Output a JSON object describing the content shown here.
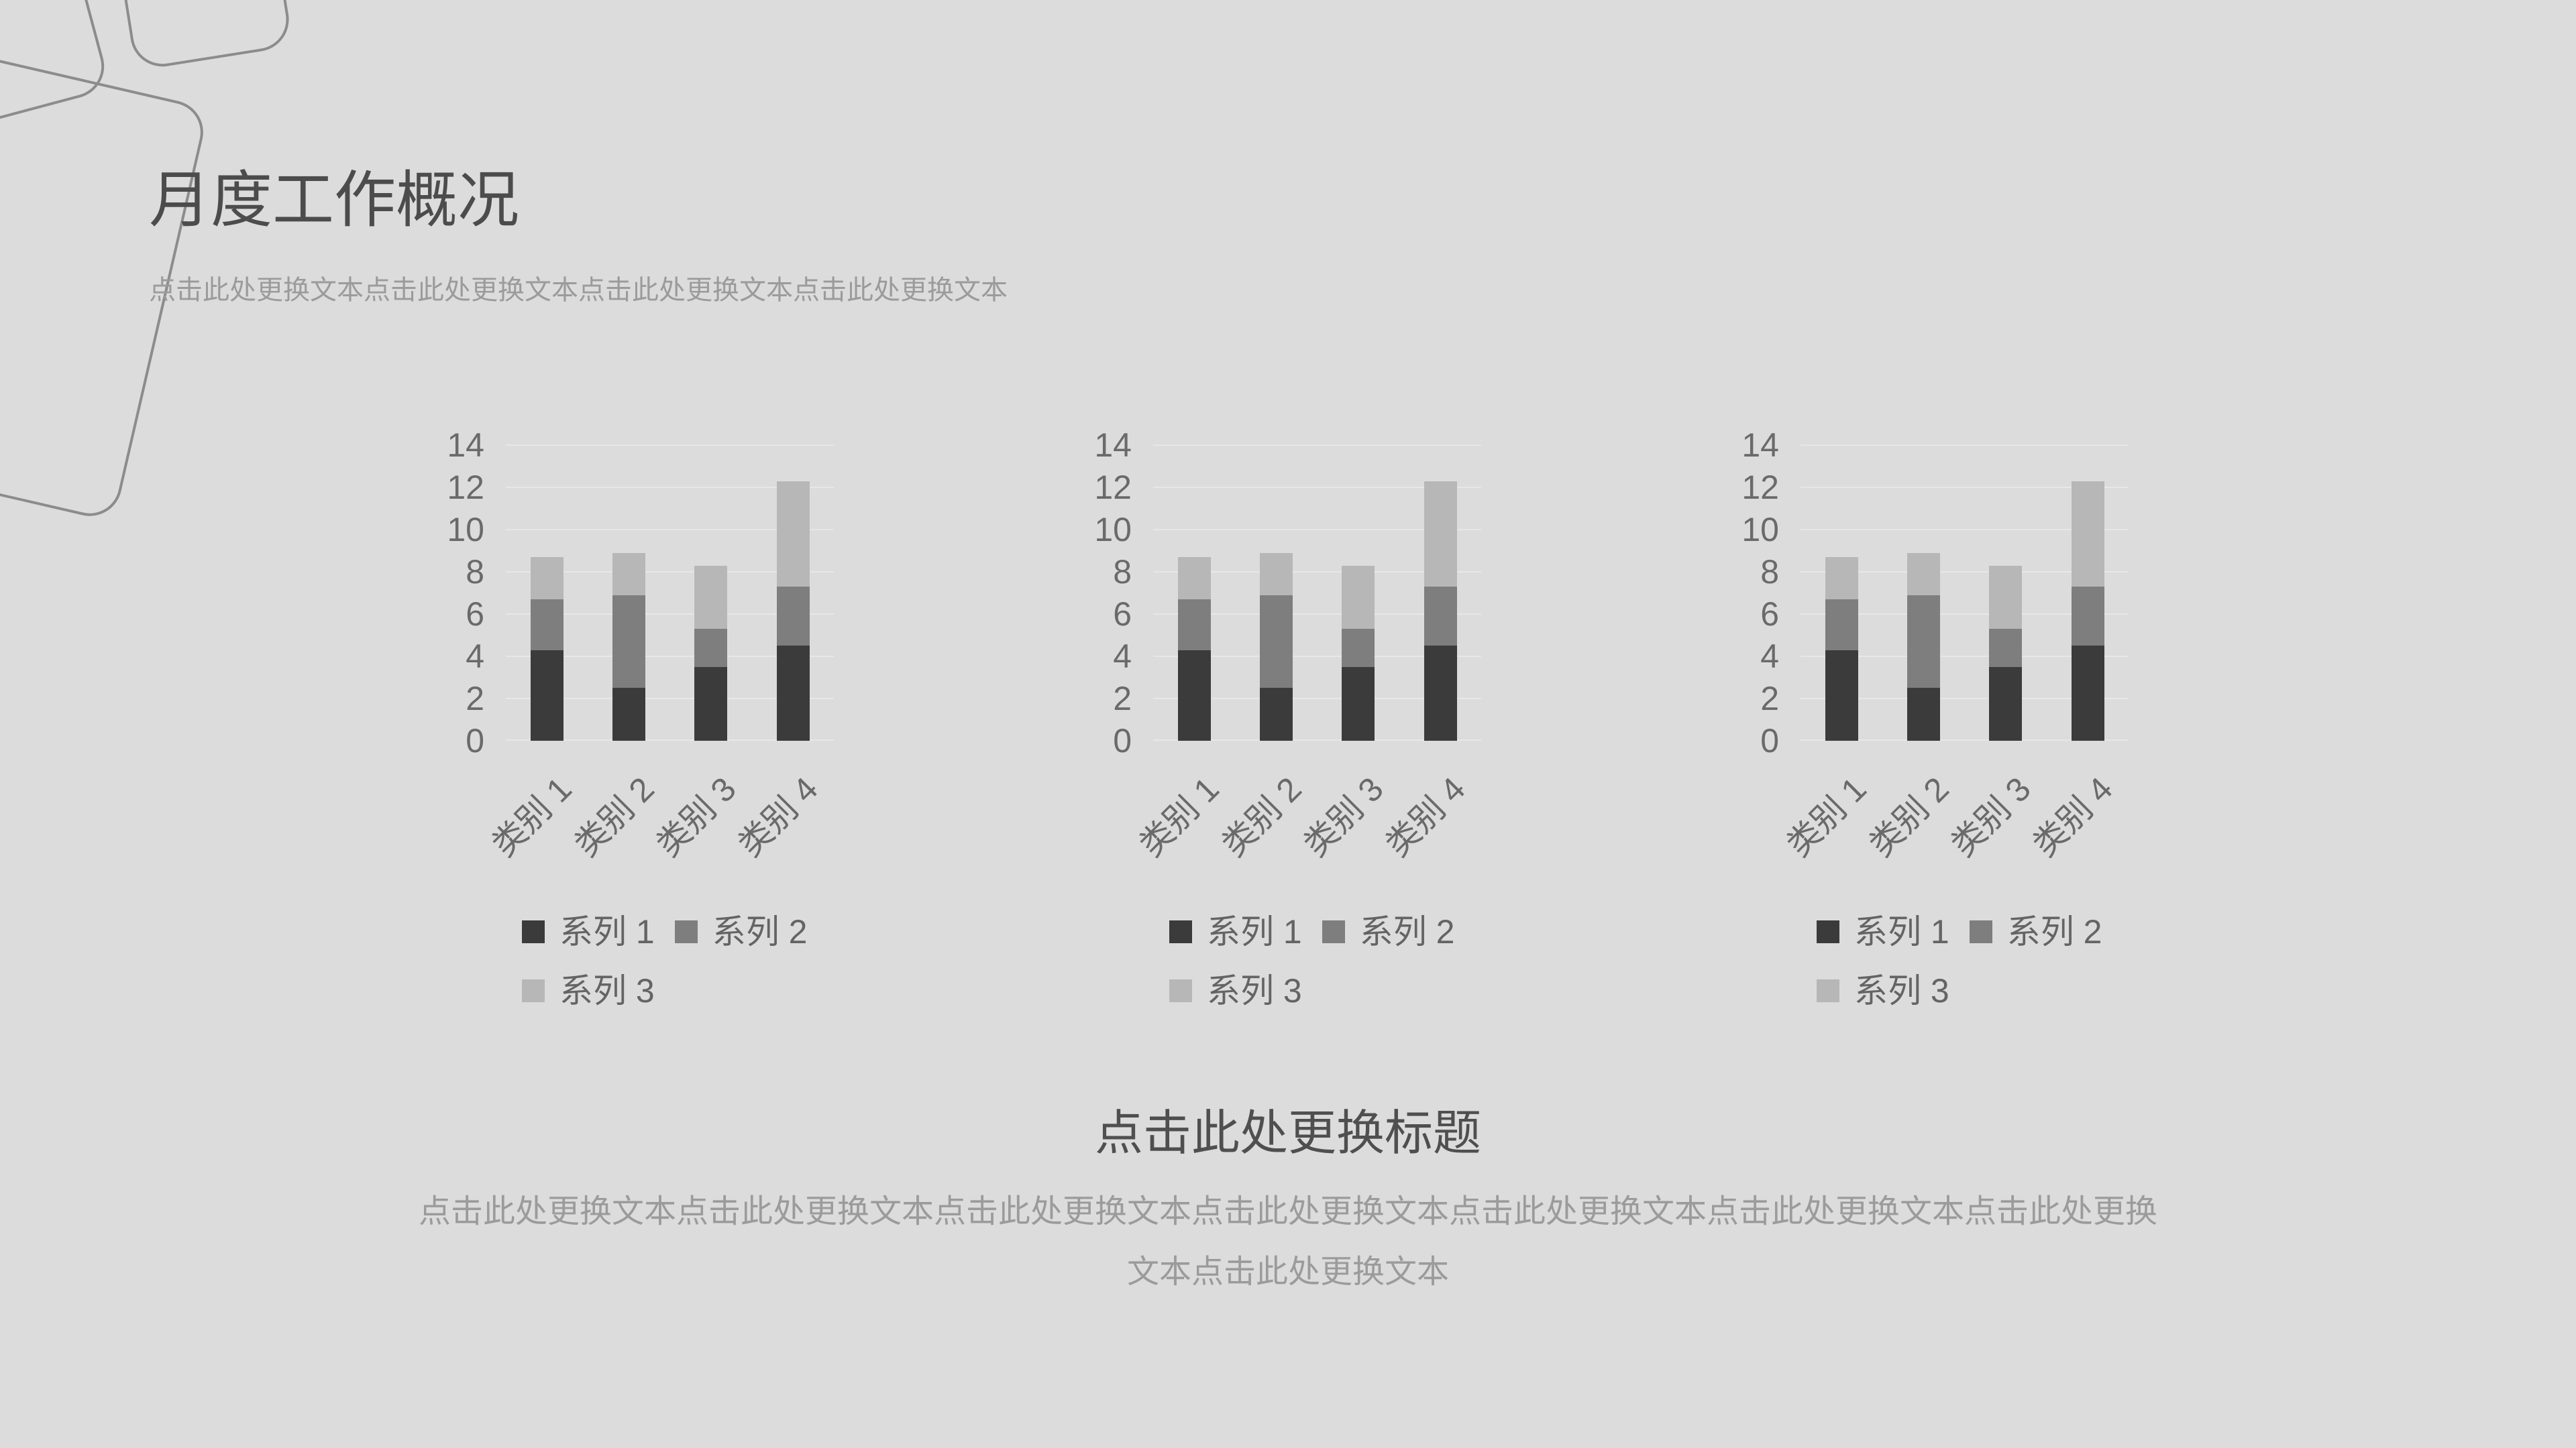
{
  "slide": {
    "background_color": "#dcdcdc",
    "decor_line_color": "#8c8c8c",
    "title": {
      "text": "月度工作概况",
      "color": "#4c4c4c"
    },
    "subtitle": {
      "text": "点击此处更换文本点击此处更换文本点击此处更换文本点击此处更换文本",
      "color": "#9b9b9b"
    },
    "footer_title": {
      "text": "点击此处更换标题",
      "color": "#4f4f4f"
    },
    "footer_text": {
      "text": "点击此处更换文本点击此处更换文本点击此处更换文本点击此处更换文本点击此处更换文本点击此处更换文本点击此处更换文本点击此处更换文本",
      "color": "#9b9b9b"
    }
  },
  "chart_data": [
    {
      "type": "bar",
      "stacked": true,
      "title": "",
      "xlabel": "",
      "ylabel": "",
      "categories": [
        "类别 1",
        "类别 2",
        "类别 3",
        "类别 4"
      ],
      "series": [
        {
          "name": "系列 1",
          "color": "#3b3b3b",
          "values": [
            4.3,
            2.5,
            3.5,
            4.5
          ]
        },
        {
          "name": "系列 2",
          "color": "#7e7e7e",
          "values": [
            2.4,
            4.4,
            1.8,
            2.8
          ]
        },
        {
          "name": "系列 3",
          "color": "#b7b7b7",
          "values": [
            2,
            2,
            3,
            5
          ]
        }
      ],
      "ylim": [
        0,
        14
      ],
      "ytick_step": 2,
      "grid": true,
      "gridline_color": "#e7e7e7",
      "axis_text_color": "#6a6a6a",
      "legend_position": "bottom"
    },
    {
      "type": "bar",
      "stacked": true,
      "title": "",
      "xlabel": "",
      "ylabel": "",
      "categories": [
        "类别 1",
        "类别 2",
        "类别 3",
        "类别 4"
      ],
      "series": [
        {
          "name": "系列 1",
          "color": "#3b3b3b",
          "values": [
            4.3,
            2.5,
            3.5,
            4.5
          ]
        },
        {
          "name": "系列 2",
          "color": "#7e7e7e",
          "values": [
            2.4,
            4.4,
            1.8,
            2.8
          ]
        },
        {
          "name": "系列 3",
          "color": "#b7b7b7",
          "values": [
            2,
            2,
            3,
            5
          ]
        }
      ],
      "ylim": [
        0,
        14
      ],
      "ytick_step": 2,
      "grid": true,
      "gridline_color": "#e7e7e7",
      "axis_text_color": "#6a6a6a",
      "legend_position": "bottom"
    },
    {
      "type": "bar",
      "stacked": true,
      "title": "",
      "xlabel": "",
      "ylabel": "",
      "categories": [
        "类别 1",
        "类别 2",
        "类别 3",
        "类别 4"
      ],
      "series": [
        {
          "name": "系列 1",
          "color": "#3b3b3b",
          "values": [
            4.3,
            2.5,
            3.5,
            4.5
          ]
        },
        {
          "name": "系列 2",
          "color": "#7e7e7e",
          "values": [
            2.4,
            4.4,
            1.8,
            2.8
          ]
        },
        {
          "name": "系列 3",
          "color": "#b7b7b7",
          "values": [
            2,
            2,
            3,
            5
          ]
        }
      ],
      "ylim": [
        0,
        14
      ],
      "ytick_step": 2,
      "grid": true,
      "gridline_color": "#e7e7e7",
      "axis_text_color": "#6a6a6a",
      "legend_position": "bottom"
    }
  ]
}
